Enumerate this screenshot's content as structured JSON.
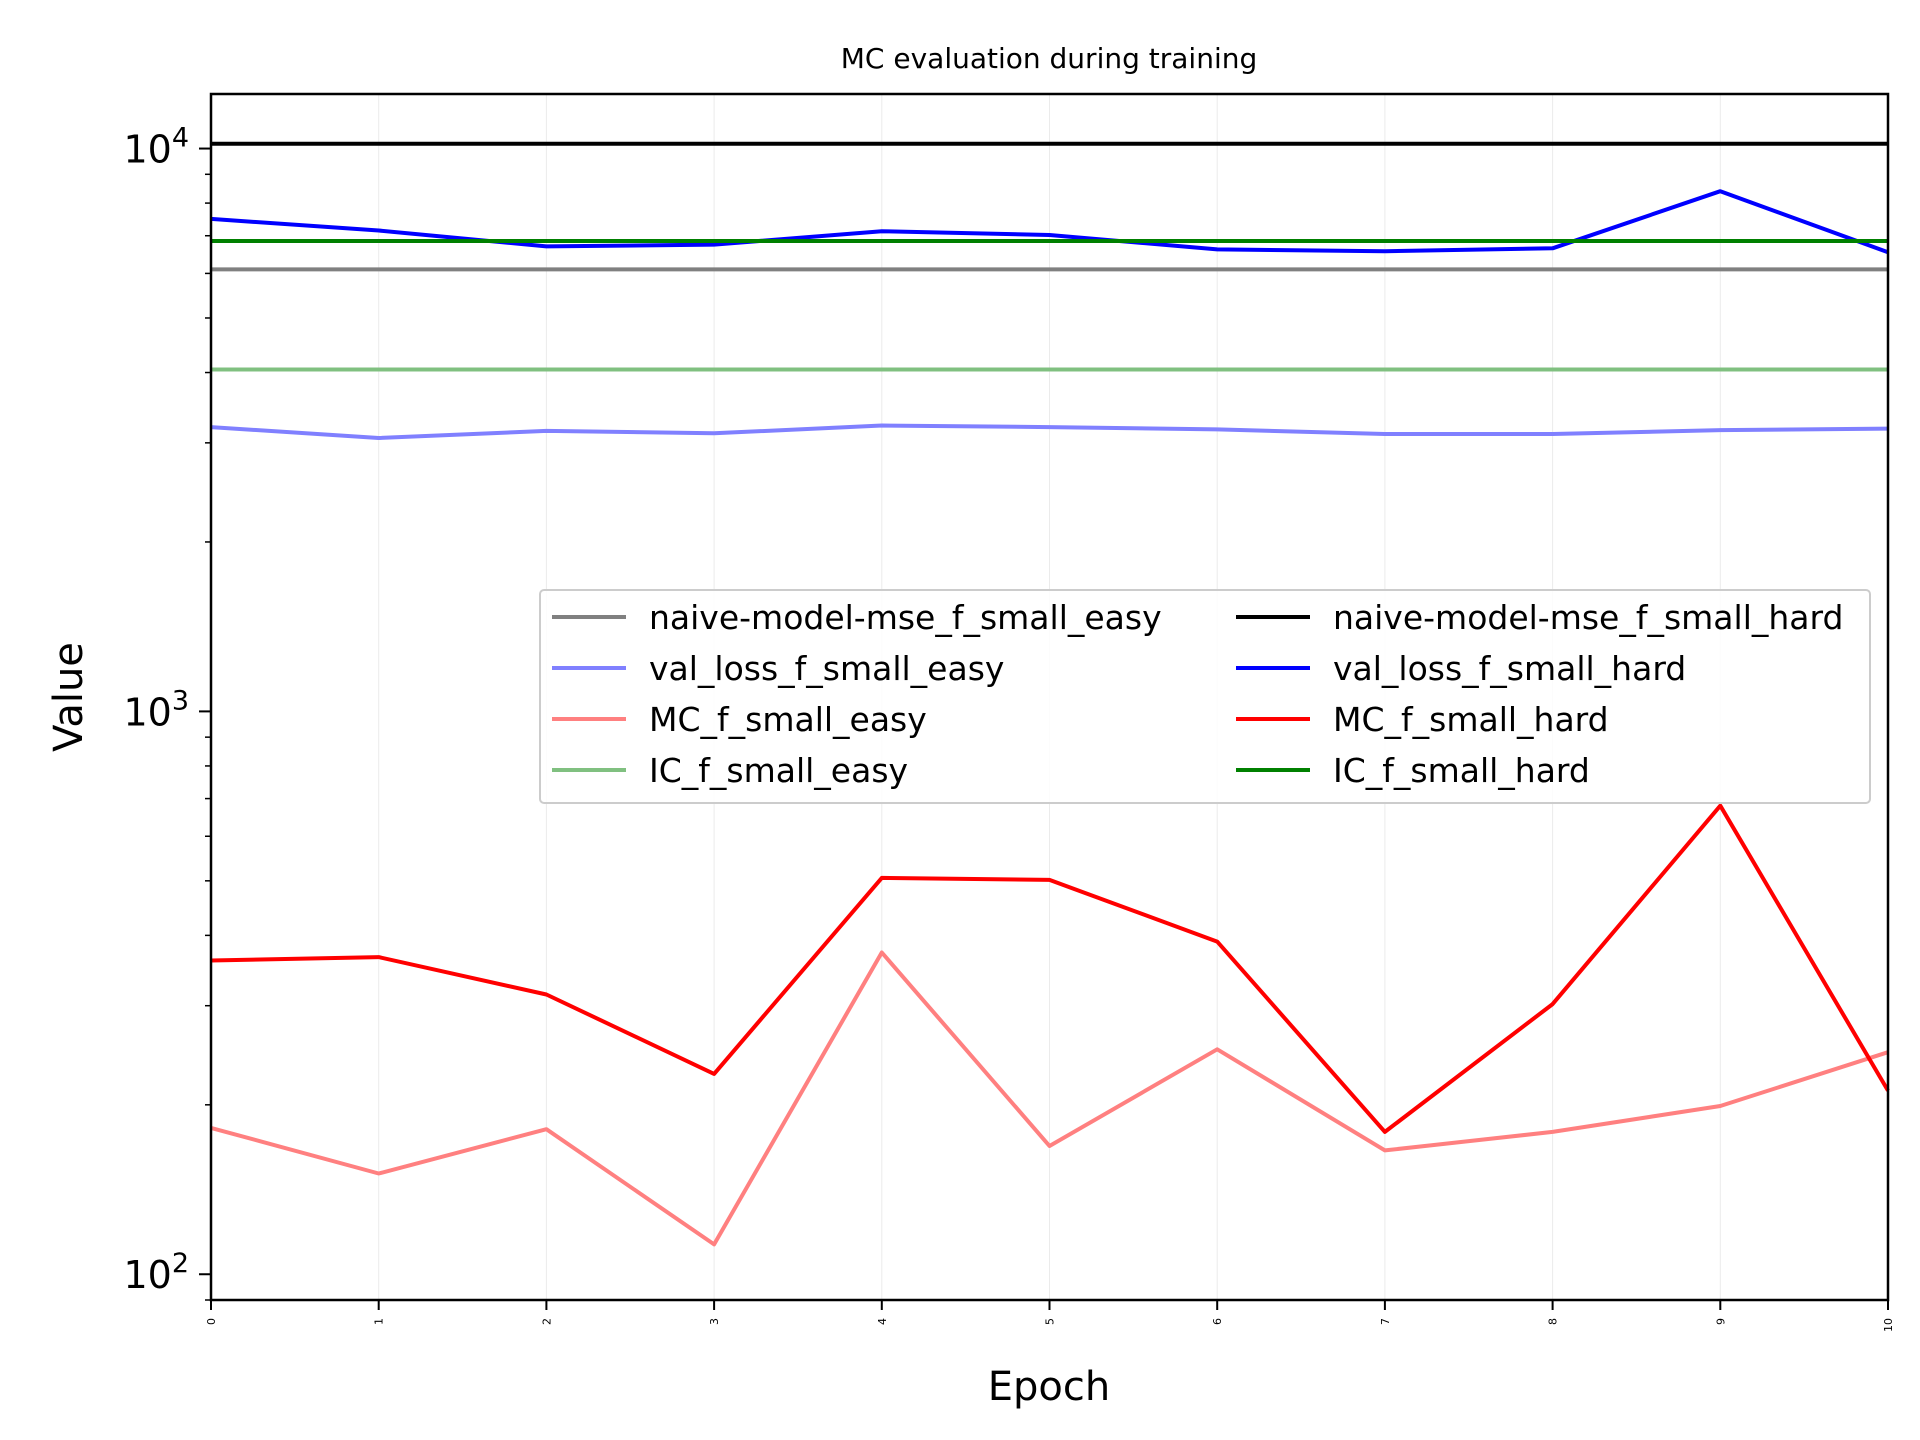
{
  "chart_data": {
    "type": "line",
    "title": "MC evaluation during training",
    "xlabel": "Epoch",
    "ylabel": "Value",
    "yscale": "log",
    "ylim": [
      90,
      12500
    ],
    "xlim": [
      0,
      10
    ],
    "x": [
      0,
      1,
      2,
      3,
      4,
      5,
      6,
      7,
      8,
      9,
      10
    ],
    "x_tick_labels": [
      "0",
      "1",
      "2",
      "3",
      "4",
      "5",
      "6",
      "7",
      "8",
      "9",
      "10"
    ],
    "y_ticks": [
      {
        "base": "10",
        "exp": "2",
        "value": 100
      },
      {
        "base": "10",
        "exp": "3",
        "value": 1000
      },
      {
        "base": "10",
        "exp": "4",
        "value": 10000
      }
    ],
    "grid": "vertical-minor",
    "legend": {
      "location": "center-right",
      "columns": 2
    },
    "series": [
      {
        "name": "naive-model-mse_f_small_easy",
        "color": "#808080",
        "alpha": 1.0,
        "values": [
          6100,
          6100,
          6100,
          6100,
          6100,
          6100,
          6100,
          6100,
          6100,
          6100,
          6100
        ]
      },
      {
        "name": "val_loss_f_small_easy",
        "color": "#8080ff",
        "alpha": 1.0,
        "values": [
          3200,
          3060,
          3150,
          3120,
          3220,
          3200,
          3170,
          3110,
          3110,
          3160,
          3180
        ]
      },
      {
        "name": "MC_f_small_easy",
        "color": "#ff8080",
        "alpha": 1.0,
        "values": [
          182,
          151,
          181,
          113,
          373,
          169,
          251,
          166,
          179,
          199,
          248
        ]
      },
      {
        "name": "IC_f_small_easy",
        "color": "#80c080",
        "alpha": 1.0,
        "values": [
          4050,
          4050,
          4050,
          4050,
          4050,
          4050,
          4050,
          4050,
          4050,
          4050,
          4050
        ]
      },
      {
        "name": "naive-model-mse_f_small_hard",
        "color": "#000000",
        "alpha": 1.0,
        "values": [
          10200,
          10200,
          10200,
          10200,
          10200,
          10200,
          10200,
          10200,
          10200,
          10200,
          10200
        ]
      },
      {
        "name": "val_loss_f_small_hard",
        "color": "#0000ff",
        "alpha": 1.0,
        "values": [
          7500,
          7150,
          6700,
          6750,
          7130,
          7020,
          6620,
          6570,
          6650,
          8400,
          6540
        ]
      },
      {
        "name": "MC_f_small_hard",
        "color": "#ff0000",
        "alpha": 1.0,
        "values": [
          361,
          366,
          314,
          227,
          506,
          502,
          390,
          179,
          302,
          680,
          212
        ]
      },
      {
        "name": "IC_f_small_hard",
        "color": "#008000",
        "alpha": 1.0,
        "values": [
          6850,
          6850,
          6850,
          6850,
          6850,
          6850,
          6850,
          6850,
          6850,
          6850,
          6850
        ]
      }
    ]
  }
}
